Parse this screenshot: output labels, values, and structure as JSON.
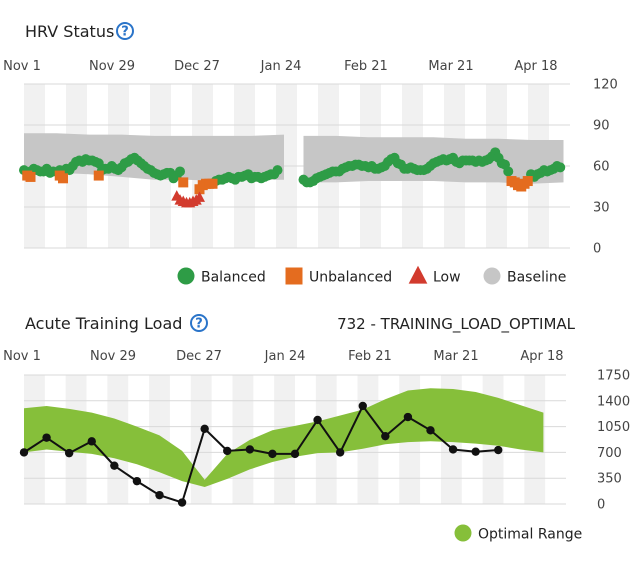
{
  "colors": {
    "balanced": "#2e9c46",
    "unbalanced": "#e46c1f",
    "low": "#d23b2e",
    "baseline": "#c6c6c6",
    "optimal": "#86bf3a",
    "load_line": "#111111",
    "band_light": "#f1f1f1",
    "grid": "#d9d9d9",
    "help": "#2a74c9"
  },
  "hrv": {
    "title": "HRV Status",
    "help_icon": "question-circle-icon",
    "legend": [
      {
        "key": "balanced",
        "label": "Balanced",
        "shape": "circle"
      },
      {
        "key": "unbalanced",
        "label": "Unbalanced",
        "shape": "square"
      },
      {
        "key": "low",
        "label": "Low",
        "shape": "triangle"
      },
      {
        "key": "baseline",
        "label": "Baseline",
        "shape": "circle"
      }
    ]
  },
  "atl": {
    "title": "Acute Training Load",
    "help_icon": "question-circle-icon",
    "status_text": "732 - TRAINING_LOAD_OPTIMAL",
    "legend": [
      {
        "key": "optimal",
        "label": "Optimal Range",
        "shape": "circle"
      }
    ]
  },
  "chart_data": [
    {
      "type": "scatter",
      "title": "HRV Status",
      "x_ticks": [
        "Nov 1",
        "Nov 29",
        "Dec 27",
        "Jan 24",
        "Feb 21",
        "Mar 21",
        "Apr 18"
      ],
      "y_ticks": [
        0,
        30,
        60,
        90,
        120
      ],
      "ylim": [
        0,
        120
      ],
      "x_unit": "day index from Nov 1",
      "xlim": [
        0,
        168
      ],
      "grid": true,
      "legend_position": "bottom-right",
      "baseline_band": {
        "segments": [
          {
            "x": [
              0,
              10,
              20,
              30,
              40,
              50,
              60,
              70,
              80
            ],
            "lower": [
              55,
              55,
              54,
              52,
              50,
              50,
              49,
              50,
              50
            ],
            "upper": [
              84,
              84,
              83,
              83,
              82,
              82,
              82,
              82,
              83
            ]
          },
          {
            "x": [
              86,
              96,
              106,
              116,
              126,
              136,
              146,
              156,
              166
            ],
            "lower": [
              48,
              48,
              49,
              49,
              49,
              48,
              48,
              47,
              48
            ],
            "upper": [
              82,
              82,
              81,
              81,
              81,
              80,
              80,
              79,
              79
            ]
          }
        ]
      },
      "series": [
        {
          "key": "balanced",
          "name": "Balanced",
          "shape": "circle",
          "points": [
            [
              0,
              57
            ],
            [
              1,
              55
            ],
            [
              2,
              56
            ],
            [
              3,
              58
            ],
            [
              4,
              57
            ],
            [
              5,
              56
            ],
            [
              6,
              56
            ],
            [
              7,
              58
            ],
            [
              8,
              55
            ],
            [
              9,
              56
            ],
            [
              11,
              57
            ],
            [
              13,
              58
            ],
            [
              14,
              57
            ],
            [
              15,
              60
            ],
            [
              16,
              63
            ],
            [
              17,
              64
            ],
            [
              18,
              63
            ],
            [
              19,
              65
            ],
            [
              20,
              64
            ],
            [
              21,
              64
            ],
            [
              22,
              63
            ],
            [
              23,
              62
            ],
            [
              24,
              57
            ],
            [
              25,
              58
            ],
            [
              26,
              58
            ],
            [
              27,
              60
            ],
            [
              28,
              58
            ],
            [
              29,
              57
            ],
            [
              30,
              59
            ],
            [
              31,
              62
            ],
            [
              32,
              63
            ],
            [
              33,
              65
            ],
            [
              34,
              66
            ],
            [
              35,
              64
            ],
            [
              36,
              62
            ],
            [
              37,
              60
            ],
            [
              38,
              58
            ],
            [
              39,
              57
            ],
            [
              40,
              55
            ],
            [
              41,
              54
            ],
            [
              42,
              53
            ],
            [
              43,
              54
            ],
            [
              44,
              55
            ],
            [
              45,
              55
            ],
            [
              46,
              51
            ],
            [
              47,
              53
            ],
            [
              48,
              56
            ],
            [
              59,
              49
            ],
            [
              60,
              50
            ],
            [
              61,
              50
            ],
            [
              62,
              51
            ],
            [
              63,
              52
            ],
            [
              64,
              51
            ],
            [
              65,
              50
            ],
            [
              66,
              52
            ],
            [
              67,
              52
            ],
            [
              68,
              53
            ],
            [
              69,
              54
            ],
            [
              70,
              51
            ],
            [
              71,
              52
            ],
            [
              72,
              52
            ],
            [
              73,
              51
            ],
            [
              74,
              52
            ],
            [
              75,
              53
            ],
            [
              76,
              54
            ],
            [
              77,
              54
            ],
            [
              78,
              57
            ],
            [
              86,
              50
            ],
            [
              87,
              48
            ],
            [
              88,
              48
            ],
            [
              89,
              49
            ],
            [
              90,
              51
            ],
            [
              91,
              52
            ],
            [
              92,
              53
            ],
            [
              93,
              54
            ],
            [
              94,
              55
            ],
            [
              95,
              56
            ],
            [
              96,
              56
            ],
            [
              97,
              56
            ],
            [
              98,
              58
            ],
            [
              99,
              59
            ],
            [
              100,
              60
            ],
            [
              101,
              60
            ],
            [
              102,
              61
            ],
            [
              103,
              61
            ],
            [
              104,
              60
            ],
            [
              105,
              60
            ],
            [
              106,
              59
            ],
            [
              107,
              60
            ],
            [
              108,
              58
            ],
            [
              109,
              58
            ],
            [
              110,
              59
            ],
            [
              111,
              60
            ],
            [
              112,
              63
            ],
            [
              113,
              65
            ],
            [
              114,
              66
            ],
            [
              115,
              62
            ],
            [
              116,
              61
            ],
            [
              117,
              58
            ],
            [
              118,
              58
            ],
            [
              119,
              59
            ],
            [
              120,
              58
            ],
            [
              121,
              57
            ],
            [
              122,
              57
            ],
            [
              123,
              57
            ],
            [
              124,
              58
            ],
            [
              125,
              60
            ],
            [
              126,
              62
            ],
            [
              127,
              63
            ],
            [
              128,
              64
            ],
            [
              129,
              65
            ],
            [
              130,
              64
            ],
            [
              131,
              65
            ],
            [
              132,
              66
            ],
            [
              133,
              63
            ],
            [
              134,
              62
            ],
            [
              135,
              64
            ],
            [
              136,
              64
            ],
            [
              137,
              64
            ],
            [
              138,
              64
            ],
            [
              139,
              63
            ],
            [
              140,
              64
            ],
            [
              141,
              63
            ],
            [
              142,
              64
            ],
            [
              143,
              65
            ],
            [
              144,
              67
            ],
            [
              145,
              70
            ],
            [
              146,
              66
            ],
            [
              147,
              62
            ],
            [
              148,
              61
            ],
            [
              149,
              56
            ],
            [
              156,
              54
            ],
            [
              157,
              52
            ],
            [
              158,
              54
            ],
            [
              159,
              55
            ],
            [
              160,
              57
            ],
            [
              161,
              56
            ],
            [
              162,
              57
            ],
            [
              163,
              58
            ],
            [
              164,
              60
            ],
            [
              165,
              59
            ]
          ]
        },
        {
          "key": "unbalanced",
          "name": "Unbalanced",
          "shape": "square",
          "points": [
            [
              1,
              53
            ],
            [
              2,
              52
            ],
            [
              11,
              53
            ],
            [
              12,
              51
            ],
            [
              23,
              53
            ],
            [
              49,
              48
            ],
            [
              54,
              43
            ],
            [
              55,
              46
            ],
            [
              56,
              47
            ],
            [
              57,
              47
            ],
            [
              58,
              47
            ],
            [
              150,
              49
            ],
            [
              151,
              48
            ],
            [
              152,
              46
            ],
            [
              153,
              45
            ],
            [
              154,
              47
            ],
            [
              155,
              49
            ]
          ]
        },
        {
          "key": "low",
          "name": "Low",
          "shape": "triangle",
          "points": [
            [
              47,
              38
            ],
            [
              48,
              35
            ],
            [
              49,
              34
            ],
            [
              50,
              33
            ],
            [
              51,
              33
            ],
            [
              52,
              34
            ],
            [
              53,
              35
            ],
            [
              54,
              37
            ]
          ]
        }
      ]
    },
    {
      "type": "line",
      "title": "Acute Training Load",
      "x_ticks": [
        "Nov 1",
        "Nov 29",
        "Dec 27",
        "Jan 24",
        "Feb 21",
        "Mar 21",
        "Apr 18"
      ],
      "y_ticks": [
        0,
        350,
        700,
        1050,
        1400,
        1750
      ],
      "ylim": [
        0,
        1750
      ],
      "x_unit": "day index from Nov 1",
      "xlim": [
        0,
        168
      ],
      "grid": true,
      "legend_position": "bottom-right",
      "optimal_range": {
        "x": [
          0,
          7,
          14,
          21,
          28,
          35,
          42,
          49,
          56,
          63,
          70,
          77,
          84,
          91,
          98,
          105,
          112,
          119,
          126,
          133,
          140,
          147,
          154,
          161
        ],
        "lower": [
          700,
          740,
          710,
          680,
          620,
          540,
          430,
          310,
          230,
          340,
          470,
          570,
          640,
          690,
          700,
          750,
          810,
          840,
          850,
          840,
          820,
          790,
          740,
          700
        ],
        "upper": [
          1300,
          1330,
          1290,
          1240,
          1160,
          1050,
          930,
          720,
          330,
          680,
          870,
          1000,
          1060,
          1120,
          1200,
          1280,
          1420,
          1540,
          1570,
          1560,
          1520,
          1440,
          1340,
          1240
        ]
      },
      "series": [
        {
          "key": "load",
          "name": "",
          "points": [
            [
              0,
              700
            ],
            [
              7,
              900
            ],
            [
              14,
              690
            ],
            [
              21,
              850
            ],
            [
              28,
              520
            ],
            [
              35,
              310
            ],
            [
              42,
              120
            ],
            [
              49,
              20
            ],
            [
              56,
              1020
            ],
            [
              63,
              720
            ],
            [
              70,
              740
            ],
            [
              77,
              680
            ],
            [
              84,
              680
            ],
            [
              91,
              1140
            ],
            [
              98,
              700
            ],
            [
              105,
              1330
            ],
            [
              112,
              920
            ],
            [
              119,
              1180
            ],
            [
              126,
              1000
            ],
            [
              133,
              740
            ],
            [
              140,
              710
            ],
            [
              147,
              732
            ]
          ]
        }
      ]
    }
  ]
}
